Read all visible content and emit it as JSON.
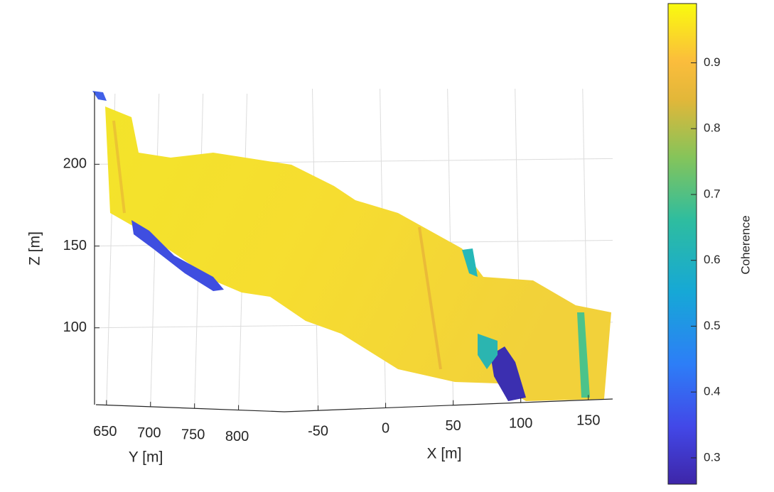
{
  "chart_data": {
    "type": "scatter3d",
    "zlabel": "Z [m]",
    "ylabel": "Y [m]",
    "xlabel": "X [m]",
    "zlim": [
      53,
      244
    ],
    "zticks": [
      100,
      150,
      200
    ],
    "ylim": [
      638,
      852
    ],
    "yticks": [
      650,
      700,
      750,
      800
    ],
    "xlim": [
      -75,
      168
    ],
    "xticks": [
      -50,
      0,
      50,
      100,
      150
    ],
    "grid": true,
    "colorbar": {
      "label": "Coherence",
      "clim": [
        0.26,
        0.99
      ],
      "ticks": [
        0.3,
        0.4,
        0.5,
        0.6,
        0.7,
        0.8,
        0.9
      ]
    }
  }
}
